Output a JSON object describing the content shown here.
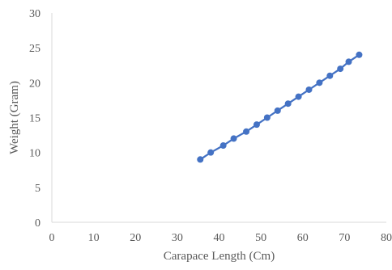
{
  "chart_data": {
    "type": "line",
    "title": "",
    "xlabel": "Carapace Length (Cm)",
    "ylabel": "Weight (Gram)",
    "xlim": [
      0,
      80
    ],
    "ylim": [
      0,
      30
    ],
    "x_ticks": [
      0,
      10,
      20,
      30,
      40,
      50,
      60,
      70,
      80
    ],
    "y_ticks": [
      0,
      5,
      10,
      15,
      20,
      25,
      30
    ],
    "grid": false,
    "legend": "none",
    "series": [
      {
        "color": "#4472c4",
        "marker": "circle",
        "x": [
          35.5,
          38,
          41,
          43.5,
          46.5,
          49,
          51.5,
          54,
          56.5,
          59,
          61.5,
          64,
          66.5,
          69,
          71,
          73.5
        ],
        "y": [
          9,
          10,
          11,
          12,
          13,
          14,
          15,
          16,
          17,
          18,
          19,
          20,
          21,
          22,
          23,
          24
        ]
      }
    ],
    "axis_color": "#d9d9d9"
  }
}
